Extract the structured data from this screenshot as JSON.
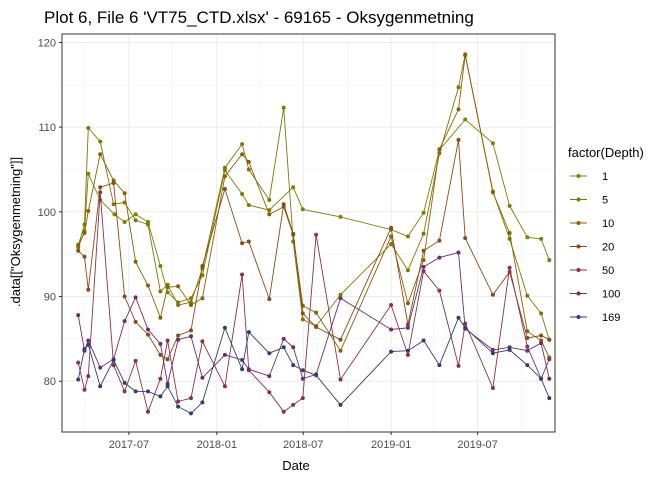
{
  "chart_data": {
    "type": "line",
    "title": "Plot 6, File 6 'VT75_CTD.xlsx' - 69165  -  Oksygenmetning",
    "xlabel": "Date",
    "ylabel": ".data[[\"Oksygenmetning\"]]",
    "x_ticks": [
      "2017-07",
      "2018-01",
      "2018-07",
      "2019-01",
      "2019-07"
    ],
    "y_ticks": [
      80,
      90,
      100,
      110,
      120
    ],
    "xlim": [
      "2017-02-11",
      "2019-12-10"
    ],
    "ylim": [
      74,
      121
    ],
    "legend_title": "factor(Depth)",
    "legend_position": "right",
    "grid": true,
    "series": [
      {
        "name": "1",
        "color": "#7f7f00",
        "x": [
          "2017-03-17",
          "2017-03-30",
          "2017-04-07",
          "2017-05-02",
          "2017-06-01",
          "2017-06-22",
          "2017-07-15",
          "2017-08-10",
          "2017-09-05",
          "2017-09-20",
          "2017-10-12",
          "2017-11-08",
          "2017-12-02",
          "2018-01-18",
          "2018-02-23",
          "2018-03-09",
          "2018-04-21",
          "2018-06-10",
          "2018-06-30",
          "2018-09-17",
          "2019-01-01",
          "2019-02-05",
          "2019-03-10",
          "2019-04-12",
          "2019-06-05",
          "2019-08-02",
          "2019-09-06",
          "2019-10-13",
          "2019-11-11",
          "2019-11-28"
        ],
        "y": [
          95.8,
          97.7,
          104.5,
          101.4,
          99.7,
          98.8,
          99.7,
          98.8,
          93.6,
          90.5,
          89.3,
          89.8,
          92.5,
          104.9,
          102.1,
          100.8,
          100.2,
          102.9,
          100.3,
          99.4,
          97.9,
          97.1,
          99.9,
          107.3,
          110.9,
          108.1,
          100.7,
          97.0,
          96.8,
          94.3
        ]
      },
      {
        "name": "5",
        "color": "#807700",
        "x": [
          "2017-03-17",
          "2017-03-30",
          "2017-04-07",
          "2017-05-02",
          "2017-05-30",
          "2017-06-22",
          "2017-07-15",
          "2017-08-10",
          "2017-09-05",
          "2017-09-20",
          "2017-10-12",
          "2017-11-08",
          "2017-12-02",
          "2018-01-18",
          "2018-02-23",
          "2018-03-09",
          "2018-04-21",
          "2018-05-21",
          "2018-06-10",
          "2018-06-30",
          "2018-07-28",
          "2018-09-17",
          "2019-01-01",
          "2019-02-05",
          "2019-03-10",
          "2019-04-12",
          "2019-05-22",
          "2019-06-05",
          "2019-08-02",
          "2019-09-06",
          "2019-10-13",
          "2019-11-11",
          "2019-11-28"
        ],
        "y": [
          96.0,
          98.5,
          109.9,
          108.3,
          100.9,
          101.1,
          99.0,
          98.5,
          90.6,
          91.4,
          89.0,
          89.3,
          93.3,
          105.2,
          108.0,
          105.0,
          101.4,
          112.3,
          96.5,
          87.3,
          86.5,
          90.2,
          96.2,
          93.1,
          97.4,
          106.9,
          114.7,
          118.6,
          102.4,
          96.8,
          90.1,
          88.0,
          84.9
        ]
      },
      {
        "name": "10",
        "color": "#8a6200",
        "x": [
          "2017-03-17",
          "2017-03-30",
          "2017-04-07",
          "2017-05-02",
          "2017-05-30",
          "2017-06-22",
          "2017-07-15",
          "2017-08-10",
          "2017-09-05",
          "2017-09-20",
          "2017-10-12",
          "2017-11-08",
          "2017-12-02",
          "2018-01-18",
          "2018-02-23",
          "2018-03-09",
          "2018-04-21",
          "2018-05-21",
          "2018-06-10",
          "2018-06-30",
          "2018-07-28",
          "2018-09-17",
          "2019-01-01",
          "2019-02-05",
          "2019-03-10",
          "2019-04-12",
          "2019-05-22",
          "2019-06-05",
          "2019-08-02",
          "2019-09-06",
          "2019-10-13",
          "2019-11-11",
          "2019-11-28"
        ],
        "y": [
          96.1,
          97.5,
          100.1,
          106.8,
          103.7,
          102.2,
          94.1,
          91.3,
          87.5,
          91.1,
          91.2,
          89.0,
          89.8,
          104.2,
          106.8,
          105.9,
          99.7,
          100.6,
          97.3,
          88.9,
          88.1,
          83.6,
          97.1,
          89.2,
          94.3,
          107.4,
          112.1,
          118.5,
          102.3,
          97.5,
          85.9,
          84.8,
          82.8
        ]
      },
      {
        "name": "20",
        "color": "#8b4b16",
        "x": [
          "2017-03-17",
          "2017-03-30",
          "2017-04-07",
          "2017-05-02",
          "2017-05-30",
          "2017-06-22",
          "2017-07-15",
          "2017-08-10",
          "2017-09-05",
          "2017-09-20",
          "2017-10-12",
          "2017-11-08",
          "2017-12-02",
          "2018-01-18",
          "2018-02-23",
          "2018-03-09",
          "2018-04-21",
          "2018-05-21",
          "2018-06-10",
          "2018-06-30",
          "2018-07-28",
          "2018-09-17",
          "2019-01-01",
          "2019-02-05",
          "2019-03-10",
          "2019-04-12",
          "2019-05-22",
          "2019-06-05",
          "2019-08-02",
          "2019-09-06",
          "2019-10-13",
          "2019-11-11",
          "2019-11-28"
        ],
        "y": [
          95.4,
          94.7,
          90.8,
          102.9,
          103.4,
          90.0,
          87.0,
          85.5,
          83.1,
          82.6,
          85.4,
          86.0,
          93.6,
          102.7,
          96.3,
          96.5,
          89.7,
          100.9,
          97.4,
          88.0,
          86.4,
          84.9,
          98.1,
          86.7,
          95.4,
          96.6,
          108.5,
          96.9,
          90.2,
          92.9,
          85.1,
          85.4,
          84.9
        ]
      },
      {
        "name": "50",
        "color": "#8b3345",
        "x": [
          "2017-03-17",
          "2017-03-30",
          "2017-04-07",
          "2017-05-02",
          "2017-05-30",
          "2017-06-22",
          "2017-07-15",
          "2017-08-10",
          "2017-09-05",
          "2017-09-20",
          "2017-10-12",
          "2017-11-08",
          "2017-12-02",
          "2018-01-18",
          "2018-02-23",
          "2018-03-09",
          "2018-04-21",
          "2018-05-21",
          "2018-06-10",
          "2018-06-30",
          "2018-07-28",
          "2018-09-17",
          "2019-01-01",
          "2019-02-05",
          "2019-03-10",
          "2019-04-12",
          "2019-05-22",
          "2019-06-05",
          "2019-08-02",
          "2019-09-06",
          "2019-10-13",
          "2019-11-11",
          "2019-11-28"
        ],
        "y": [
          82.2,
          79.0,
          80.6,
          102.3,
          81.9,
          78.8,
          82.4,
          76.4,
          80.3,
          84.8,
          77.6,
          78.0,
          84.7,
          79.4,
          92.6,
          81.3,
          78.7,
          76.4,
          77.2,
          78.0,
          97.3,
          80.2,
          89.0,
          83.1,
          93.0,
          90.7,
          81.8,
          86.8,
          79.2,
          93.4,
          84.1,
          80.3,
          82.6
        ]
      },
      {
        "name": "100",
        "color": "#6e2d6b",
        "x": [
          "2017-03-17",
          "2017-03-30",
          "2017-04-07",
          "2017-05-02",
          "2017-05-30",
          "2017-06-22",
          "2017-07-15",
          "2017-08-10",
          "2017-09-05",
          "2017-09-20",
          "2017-10-12",
          "2017-11-08",
          "2017-12-02",
          "2018-01-18",
          "2018-02-23",
          "2018-03-09",
          "2018-04-21",
          "2018-05-21",
          "2018-06-10",
          "2018-06-30",
          "2018-07-28",
          "2018-09-17",
          "2019-01-01",
          "2019-02-05",
          "2019-03-10",
          "2019-04-12",
          "2019-05-22",
          "2019-06-05",
          "2019-08-02",
          "2019-09-06",
          "2019-10-13",
          "2019-11-11",
          "2019-11-28"
        ],
        "y": [
          87.8,
          83.6,
          84.8,
          81.6,
          82.6,
          87.1,
          89.9,
          86.1,
          84.4,
          79.7,
          84.9,
          85.3,
          80.4,
          83.1,
          82.5,
          81.4,
          80.6,
          85.0,
          84.0,
          80.3,
          80.8,
          89.8,
          86.1,
          86.3,
          93.5,
          94.6,
          95.2,
          86.2,
          83.7,
          84.0,
          83.6,
          84.5,
          80.3
        ]
      },
      {
        "name": "169",
        "color": "#2f3f73",
        "x": [
          "2017-03-17",
          "2017-03-30",
          "2017-04-07",
          "2017-05-02",
          "2017-05-30",
          "2017-06-22",
          "2017-07-15",
          "2017-08-10",
          "2017-09-05",
          "2017-09-20",
          "2017-10-12",
          "2017-11-08",
          "2017-12-02",
          "2018-01-18",
          "2018-02-23",
          "2018-03-09",
          "2018-04-21",
          "2018-05-21",
          "2018-06-10",
          "2018-06-30",
          "2018-07-28",
          "2018-09-17",
          "2019-01-01",
          "2019-02-05",
          "2019-03-10",
          "2019-04-12",
          "2019-05-22",
          "2019-06-05",
          "2019-08-02",
          "2019-09-06",
          "2019-10-13",
          "2019-11-11",
          "2019-11-28"
        ],
        "y": [
          80.2,
          83.8,
          84.3,
          79.4,
          82.5,
          79.8,
          78.8,
          78.8,
          78.2,
          79.4,
          77.0,
          76.2,
          77.5,
          86.3,
          81.4,
          85.8,
          83.3,
          84.0,
          81.9,
          81.3,
          80.7,
          77.2,
          83.5,
          83.6,
          84.8,
          81.9,
          87.5,
          86.3,
          83.3,
          83.7,
          81.9,
          80.3,
          78.0
        ]
      }
    ]
  }
}
